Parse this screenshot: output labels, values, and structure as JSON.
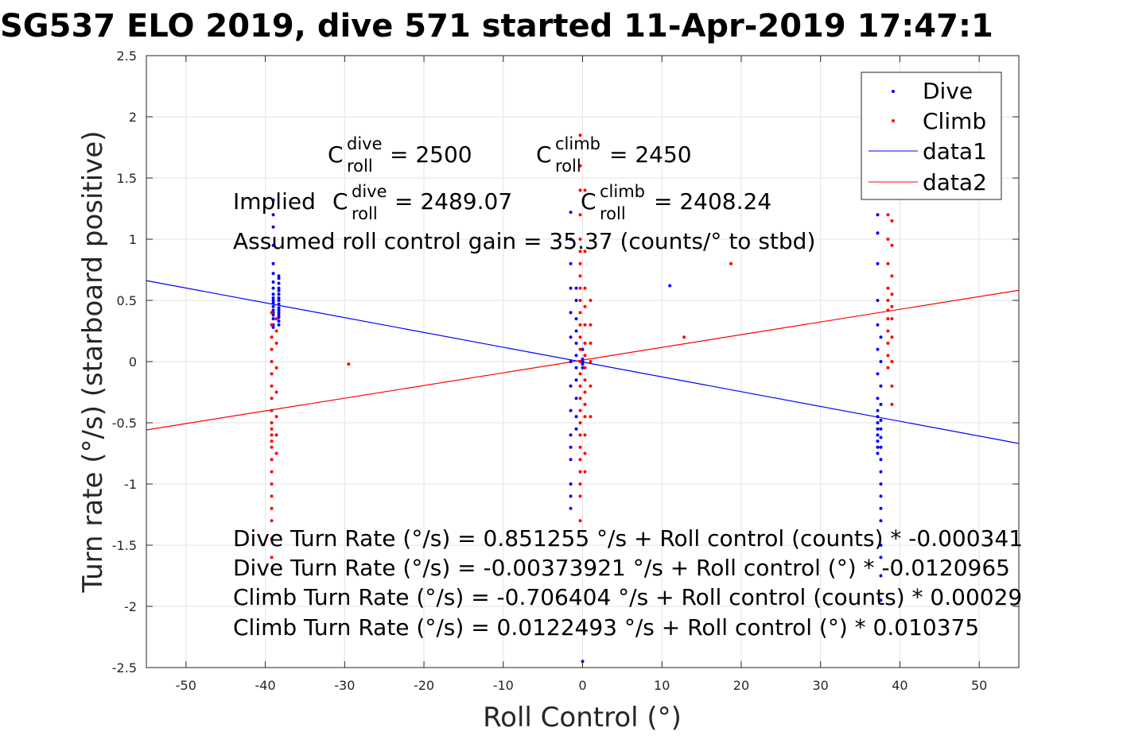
{
  "chart_data": {
    "type": "scatter",
    "title": "SG537 ELO 2019, dive 571 started 11-Apr-2019 17:47:1",
    "xlabel": "Roll Control (°)",
    "ylabel": "Turn rate (°/s) (starboard positive)",
    "xlim": [
      -55,
      55
    ],
    "ylim": [
      -2.5,
      2.5
    ],
    "xticks": [
      "-50",
      "-40",
      "-30",
      "-20",
      "-10",
      "0",
      "10",
      "20",
      "30",
      "40",
      "50"
    ],
    "yticks": [
      "-2.5",
      "-2",
      "-1.5",
      "-1",
      "-0.5",
      "0",
      "0.5",
      "1",
      "1.5",
      "2",
      "2.5"
    ],
    "grid": true,
    "legend_position": "top-right",
    "legend": [
      "Dive",
      "Climb",
      "data1",
      "data2"
    ],
    "series": [
      {
        "name": "Dive",
        "kind": "points",
        "color": "#0000ff",
        "clusters": [
          {
            "x": -39,
            "y": [
              1.2,
              1.32,
              1.1,
              0.95,
              0.8,
              0.72,
              0.65,
              0.6,
              0.55,
              0.52,
              0.5,
              0.48,
              0.45,
              0.42,
              0.4,
              0.38,
              0.35,
              0.3,
              0.28
            ]
          },
          {
            "x": -38.3,
            "y": [
              0.7,
              0.68,
              0.64,
              0.6,
              0.58,
              0.55,
              0.52,
              0.5,
              0.47,
              0.44,
              0.42,
              0.4,
              0.38,
              0.36,
              0.33,
              0.3
            ]
          },
          {
            "x": -1.5,
            "y": [
              1.22,
              1.0,
              0.8,
              0.6,
              0.4,
              0.2,
              0.0,
              -0.2,
              -0.4,
              -0.6,
              -0.7,
              -0.8,
              -1.0,
              -1.1,
              -1.2
            ]
          },
          {
            "x": -0.8,
            "y": [
              0.6,
              0.5,
              0.35,
              0.25,
              0.15,
              0.05,
              -0.05,
              -0.15,
              -0.3,
              -0.45,
              -0.55
            ]
          },
          {
            "x": 0.0,
            "y": [
              0.1,
              0.02,
              -0.02,
              0.0,
              -0.05,
              -2.45
            ]
          },
          {
            "x": 11,
            "y": [
              0.62
            ]
          },
          {
            "x": 37.2,
            "y": [
              1.2,
              1.05,
              0.8,
              0.5,
              0.3,
              0.1,
              -0.1,
              -0.3,
              -0.4,
              -0.45,
              -0.5,
              -0.55,
              -0.6,
              -0.65,
              -0.7,
              -0.75
            ]
          },
          {
            "x": 37.6,
            "y": [
              0.2,
              0.0,
              -0.2,
              -0.35,
              -0.48,
              -0.55,
              -0.62,
              -0.7,
              -0.8,
              -0.9,
              -1.0,
              -1.1,
              -1.2,
              -1.3,
              -1.5,
              -1.6,
              -1.75,
              -1.95
            ]
          }
        ]
      },
      {
        "name": "Climb",
        "kind": "points",
        "color": "#ff0000",
        "clusters": [
          {
            "x": -39.2,
            "y": [
              0.4,
              0.3,
              0.2,
              0.1,
              0.0,
              -0.1,
              -0.2,
              -0.3,
              -0.4,
              -0.5,
              -0.55,
              -0.6,
              -0.65,
              -0.7,
              -0.8,
              -0.9,
              -1.0,
              -1.1,
              -1.2,
              -1.3,
              -1.45,
              -1.6
            ]
          },
          {
            "x": -38.6,
            "y": [
              0.35,
              0.25,
              0.15,
              -0.05,
              -0.25,
              -0.45,
              -0.6,
              -0.75
            ]
          },
          {
            "x": -29.5,
            "y": [
              -0.02
            ]
          },
          {
            "x": -0.3,
            "y": [
              1.85,
              1.6,
              1.4,
              1.2,
              1.0,
              0.9,
              0.8,
              0.7,
              0.6,
              0.5,
              0.4,
              0.3,
              0.2,
              0.1,
              0.0,
              -0.1,
              -0.2,
              -0.3,
              -0.4,
              -0.5,
              -0.6,
              -0.7,
              -0.8,
              -0.9,
              -1.0,
              -1.1,
              -1.3
            ]
          },
          {
            "x": 0.3,
            "y": [
              1.4,
              0.9,
              0.6,
              0.45,
              0.3,
              0.15,
              0.05,
              -0.05,
              -0.15,
              -0.25,
              -0.35,
              -0.45,
              -0.6,
              -0.75,
              -0.9
            ]
          },
          {
            "x": 1.0,
            "y": [
              0.5,
              0.3,
              0.15,
              0.0,
              -0.2,
              -0.45
            ]
          },
          {
            "x": 12.8,
            "y": [
              0.2
            ]
          },
          {
            "x": 18.7,
            "y": [
              0.8
            ]
          },
          {
            "x": 38.5,
            "y": [
              1.2,
              1.0,
              0.8,
              0.6,
              0.5,
              0.42,
              0.35,
              0.25,
              0.15,
              0.05,
              -0.05
            ]
          },
          {
            "x": 39,
            "y": [
              1.15,
              0.95,
              0.7,
              0.55,
              0.45,
              0.35,
              0.2,
              0.0,
              -0.2,
              -0.35
            ]
          }
        ]
      },
      {
        "name": "data1",
        "kind": "line",
        "color": "#0000ff",
        "x": [
          -55,
          55
        ],
        "y": [
          0.661578,
          -0.669046
        ]
      },
      {
        "name": "data2",
        "kind": "line",
        "color": "#ff0000",
        "x": [
          -55,
          55
        ],
        "y": [
          -0.558376,
          0.582874
        ]
      }
    ],
    "annotations": {
      "c_dive": {
        "base": "C",
        "sup": "dive",
        "sub": "roll",
        "value": " = 2500"
      },
      "c_climb": {
        "base": "C",
        "sup": "climb",
        "sub": "roll",
        "value": " = 2450"
      },
      "implied_prefix": "Implied ",
      "implied_dive": {
        "base": "C",
        "sup": "dive",
        "sub": "roll",
        "value": " = 2489.07"
      },
      "implied_climb": {
        "base": "C",
        "sup": "climb",
        "sub": "roll",
        "value": " = 2408.24"
      },
      "gain": "Assumed roll control gain = 35.37 (counts/° to stbd)",
      "fits": [
        "Dive Turn Rate (°/s) = 0.851255 °/s + Roll control (counts) * -0.000341",
        "Dive Turn Rate (°/s) = -0.00373921 °/s + Roll control (°) * -0.0120965",
        "Climb Turn Rate (°/s) = -0.706404 °/s + Roll control (counts) * 0.00029",
        "Climb Turn Rate (°/s) = 0.0122493 °/s + Roll control (°) * 0.010375"
      ]
    }
  }
}
